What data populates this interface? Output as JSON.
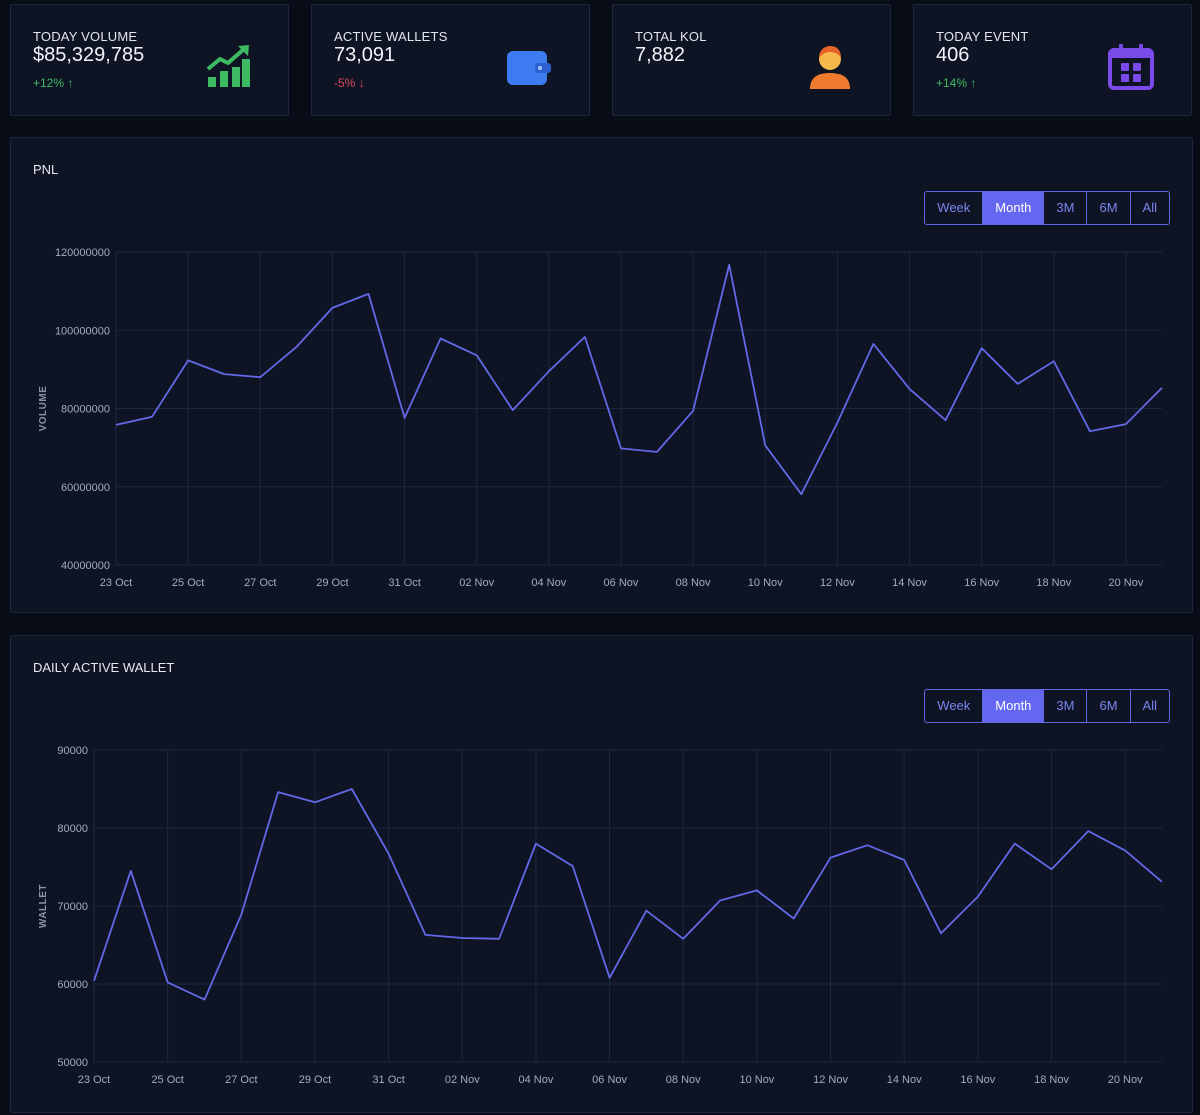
{
  "stats": [
    {
      "label": "TODAY VOLUME",
      "value": "$85,329,785",
      "change": "+12%",
      "direction": "up",
      "icon": "chart-growth-icon",
      "icon_color": "#3dbb63"
    },
    {
      "label": "ACTIVE WALLETS",
      "value": "73,091",
      "change": "-5%",
      "direction": "down",
      "icon": "wallet-icon",
      "icon_color": "#3d7cf0"
    },
    {
      "label": "TOTAL KOL",
      "value": "7,882",
      "change": "",
      "direction": "",
      "icon": "user-icon",
      "icon_color": "#f07a2e"
    },
    {
      "label": "TODAY EVENT",
      "value": "406",
      "change": "+14%",
      "direction": "up",
      "icon": "calendar-icon",
      "icon_color": "#7a4be8"
    }
  ],
  "pnl_panel": {
    "title": "PNL",
    "ranges": [
      "Week",
      "Month",
      "3M",
      "6M",
      "All"
    ],
    "active_range": "Month"
  },
  "wallet_panel": {
    "title": "DAILY ACTIVE WALLET",
    "ranges": [
      "Week",
      "Month",
      "3M",
      "6M",
      "All"
    ],
    "active_range": "Month"
  },
  "chart_data": [
    {
      "type": "line",
      "title": "PNL",
      "xlabel": "",
      "ylabel": "VOLUME",
      "ylim": [
        40000000,
        120000000
      ],
      "y_ticks": [
        "120000000",
        "100000000",
        "80000000",
        "60000000",
        "40000000"
      ],
      "x_tick_labels": [
        "23 Oct",
        "25 Oct",
        "27 Oct",
        "29 Oct",
        "31 Oct",
        "02 Nov",
        "04 Nov",
        "06 Nov",
        "08 Nov",
        "10 Nov",
        "12 Nov",
        "14 Nov",
        "16 Nov",
        "18 Nov",
        "20 Nov"
      ],
      "x": [
        "23 Oct",
        "24 Oct",
        "25 Oct",
        "26 Oct",
        "27 Oct",
        "28 Oct",
        "29 Oct",
        "30 Oct",
        "31 Oct",
        "01 Nov",
        "02 Nov",
        "03 Nov",
        "04 Nov",
        "05 Nov",
        "06 Nov",
        "07 Nov",
        "08 Nov",
        "09 Nov",
        "10 Nov",
        "11 Nov",
        "12 Nov",
        "13 Nov",
        "14 Nov",
        "15 Nov",
        "16 Nov",
        "17 Nov",
        "18 Nov",
        "19 Nov",
        "20 Nov",
        "21 Nov"
      ],
      "series": [
        {
          "values": [
            75800000,
            77900000,
            92300000,
            88800000,
            88000000,
            95700000,
            105700000,
            109300000,
            77600000,
            97900000,
            93600000,
            79600000,
            89500000,
            98300000,
            69800000,
            68900000,
            79400000,
            116700000,
            70600000,
            58100000,
            76400000,
            96500000,
            85000000,
            77000000,
            95400000,
            86300000,
            92100000,
            74200000,
            76000000,
            85300000
          ]
        }
      ],
      "grid": true
    },
    {
      "type": "line",
      "title": "DAILY ACTIVE WALLET",
      "xlabel": "",
      "ylabel": "WALLET",
      "ylim": [
        50000,
        90000
      ],
      "y_ticks": [
        "90000",
        "80000",
        "70000",
        "60000",
        "50000"
      ],
      "x_tick_labels": [
        "23 Oct",
        "25 Oct",
        "27 Oct",
        "29 Oct",
        "31 Oct",
        "02 Nov",
        "04 Nov",
        "06 Nov",
        "08 Nov",
        "10 Nov",
        "12 Nov",
        "14 Nov",
        "16 Nov",
        "18 Nov",
        "20 Nov"
      ],
      "x": [
        "23 Oct",
        "24 Oct",
        "25 Oct",
        "26 Oct",
        "27 Oct",
        "28 Oct",
        "29 Oct",
        "30 Oct",
        "31 Oct",
        "01 Nov",
        "02 Nov",
        "03 Nov",
        "04 Nov",
        "05 Nov",
        "06 Nov",
        "07 Nov",
        "08 Nov",
        "09 Nov",
        "10 Nov",
        "11 Nov",
        "12 Nov",
        "13 Nov",
        "14 Nov",
        "15 Nov",
        "16 Nov",
        "17 Nov",
        "18 Nov",
        "19 Nov",
        "20 Nov",
        "21 Nov"
      ],
      "series": [
        {
          "values": [
            60400,
            74500,
            60200,
            58000,
            68900,
            84600,
            83300,
            85000,
            76700,
            66300,
            65900,
            65800,
            78000,
            75100,
            60800,
            69400,
            65800,
            70700,
            72000,
            68400,
            76200,
            77800,
            75900,
            66500,
            71200,
            78000,
            74700,
            79600,
            77100,
            73100
          ]
        }
      ],
      "grid": true
    }
  ]
}
